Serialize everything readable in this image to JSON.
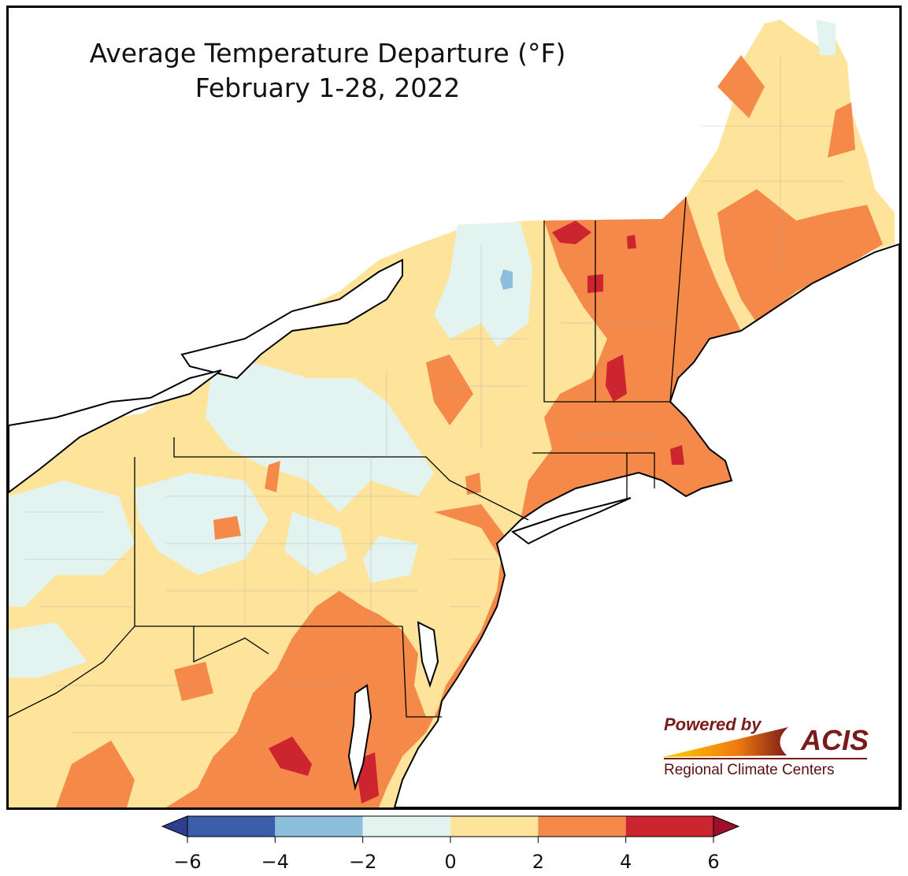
{
  "title": {
    "line1": "Average Temperature Departure (°F)",
    "line2": "February 1-28, 2022"
  },
  "logo": {
    "powered_by": "Powered by",
    "name": "ACIS",
    "subtitle": "Regional Climate Centers"
  },
  "legend": {
    "bins": [
      {
        "from": -6,
        "to": -4,
        "color": "#3a5fa8"
      },
      {
        "from": -4,
        "to": -2,
        "color": "#8cbfdc"
      },
      {
        "from": -2,
        "to": 0,
        "color": "#e3f3ef"
      },
      {
        "from": 0,
        "to": 2,
        "color": "#fde49a"
      },
      {
        "from": 2,
        "to": 4,
        "color": "#f4894a"
      },
      {
        "from": 4,
        "to": 6,
        "color": "#cc2530"
      }
    ],
    "ticks": [
      "−6",
      "−4",
      "−2",
      "0",
      "2",
      "4",
      "6"
    ],
    "extend_low_color": "#2e3f91",
    "extend_high_color": "#9e0f2a"
  },
  "colors": {
    "water": "#ffffff",
    "border": "#000000"
  }
}
